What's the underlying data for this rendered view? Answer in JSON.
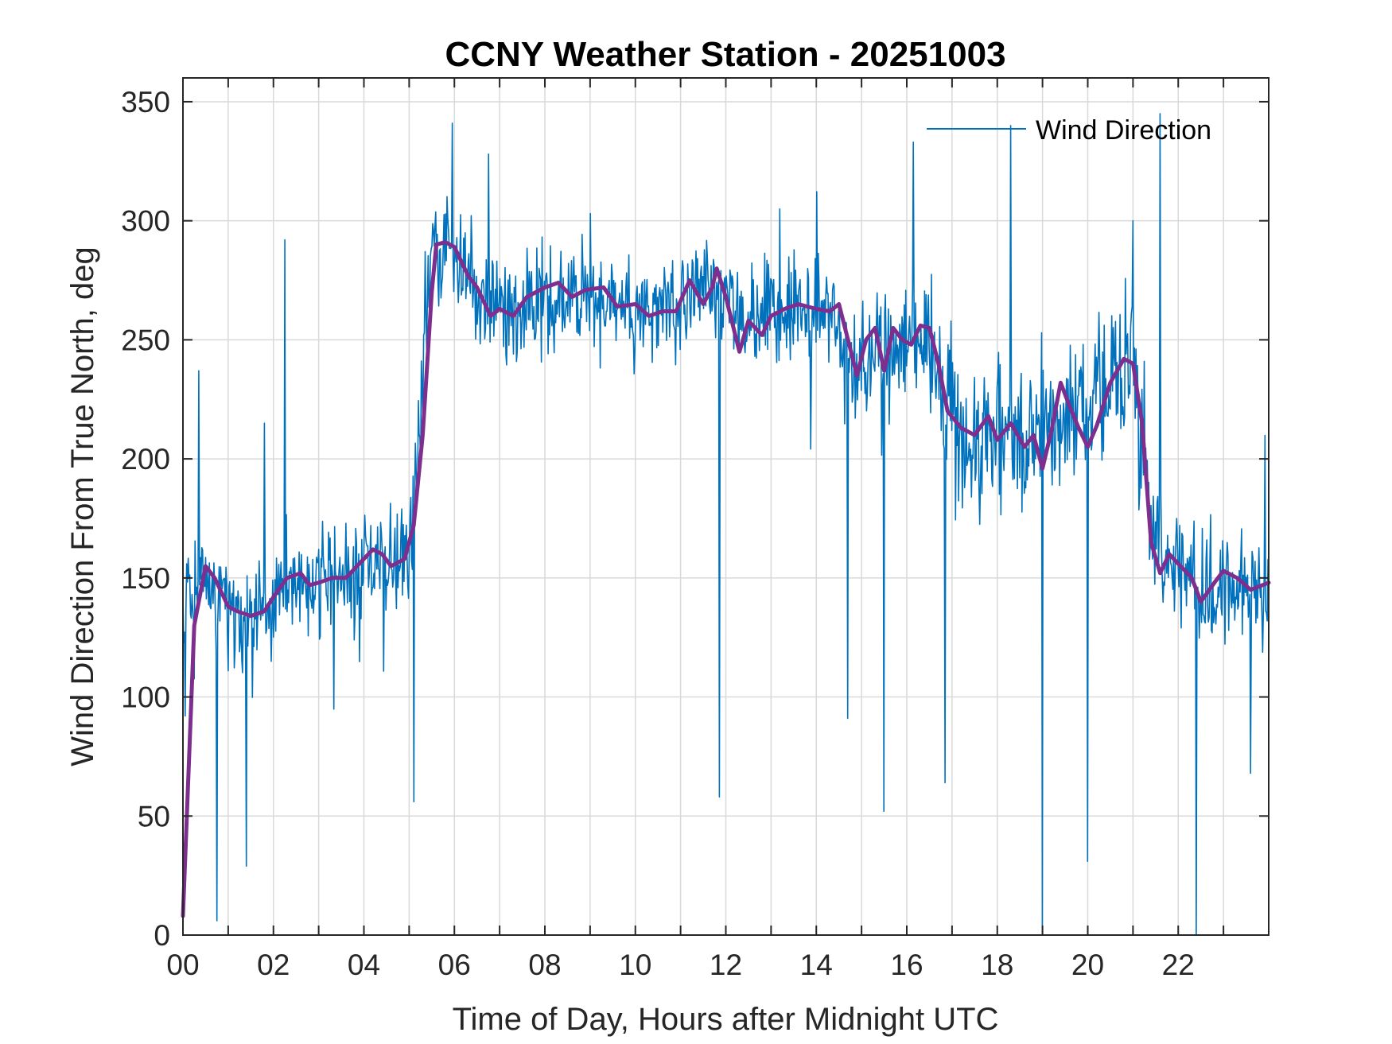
{
  "chart_data": {
    "type": "line",
    "title": "CCNY Weather Station - 20251003",
    "xlabel": "Time of Day, Hours after Midnight UTC",
    "ylabel": "Wind Direction From True North, deg",
    "xlim": [
      0,
      24
    ],
    "ylim": [
      0,
      360
    ],
    "grid": true,
    "legend_position": "top-right",
    "x_ticks": [
      0,
      2,
      4,
      6,
      8,
      10,
      12,
      14,
      16,
      18,
      20,
      22
    ],
    "x_tick_labels": [
      "00",
      "02",
      "04",
      "06",
      "08",
      "10",
      "12",
      "14",
      "16",
      "18",
      "20",
      "22"
    ],
    "x_minor_ticks": [
      1,
      3,
      5,
      7,
      9,
      11,
      13,
      15,
      17,
      19,
      21,
      23
    ],
    "y_ticks": [
      0,
      50,
      100,
      150,
      200,
      250,
      300,
      350
    ],
    "y_tick_labels": [
      "0",
      "50",
      "100",
      "150",
      "200",
      "250",
      "300",
      "350"
    ],
    "series": [
      {
        "name": "Wind Direction",
        "color": "#0072BD",
        "style": "thin-noisy",
        "base": {
          "x": [
            0,
            0.2,
            0.5,
            1.0,
            1.5,
            2.0,
            2.5,
            3.0,
            3.5,
            4.0,
            4.5,
            5.0,
            5.2,
            5.5,
            6.0,
            6.5,
            7.0,
            8.0,
            9.0,
            10.0,
            11.0,
            11.5,
            12.0,
            12.5,
            13.0,
            14.0,
            14.5,
            15.0,
            15.5,
            16.0,
            16.5,
            17.0,
            17.5,
            18.0,
            18.5,
            19.0,
            19.5,
            20.0,
            20.5,
            21.0,
            21.5,
            22.0,
            22.5,
            23.0,
            23.5,
            24.0
          ],
          "y": [
            150,
            145,
            150,
            138,
            135,
            140,
            148,
            148,
            152,
            158,
            155,
            162,
            210,
            290,
            285,
            272,
            262,
            268,
            270,
            262,
            262,
            272,
            270,
            255,
            260,
            262,
            255,
            240,
            245,
            248,
            250,
            215,
            210,
            208,
            205,
            218,
            212,
            215,
            235,
            238,
            160,
            155,
            145,
            148,
            145,
            145
          ]
        },
        "noise_amplitude": 22,
        "samples": 1440,
        "spikes": [
          {
            "x": 0.05,
            "y": 92
          },
          {
            "x": 0.35,
            "y": 237
          },
          {
            "x": 0.75,
            "y": 6
          },
          {
            "x": 1.4,
            "y": 29
          },
          {
            "x": 1.8,
            "y": 215
          },
          {
            "x": 2.25,
            "y": 292
          },
          {
            "x": 5.1,
            "y": 56
          },
          {
            "x": 5.95,
            "y": 341
          },
          {
            "x": 6.75,
            "y": 328
          },
          {
            "x": 11.85,
            "y": 58
          },
          {
            "x": 14.7,
            "y": 91
          },
          {
            "x": 15.5,
            "y": 52
          },
          {
            "x": 16.15,
            "y": 333
          },
          {
            "x": 16.85,
            "y": 64
          },
          {
            "x": 18.3,
            "y": 340
          },
          {
            "x": 19.0,
            "y": 0
          },
          {
            "x": 20.0,
            "y": 31
          },
          {
            "x": 21.0,
            "y": 300
          },
          {
            "x": 21.6,
            "y": 345
          },
          {
            "x": 22.4,
            "y": 0
          },
          {
            "x": 23.6,
            "y": 68
          }
        ]
      },
      {
        "name": "",
        "color": "#7E2F8E",
        "style": "thick-smooth",
        "x": [
          0,
          0.25,
          0.5,
          0.7,
          1.0,
          1.2,
          1.5,
          1.8,
          2.0,
          2.3,
          2.6,
          2.8,
          3.0,
          3.3,
          3.6,
          4.0,
          4.2,
          4.4,
          4.6,
          4.9,
          5.0,
          5.1,
          5.3,
          5.5,
          5.6,
          5.8,
          6.0,
          6.3,
          6.5,
          6.8,
          7.0,
          7.3,
          7.6,
          8.0,
          8.3,
          8.6,
          8.9,
          9.3,
          9.6,
          10.0,
          10.3,
          10.6,
          10.9,
          11.2,
          11.5,
          11.7,
          11.8,
          12.0,
          12.3,
          12.5,
          12.8,
          13.0,
          13.3,
          13.6,
          14.0,
          14.3,
          14.5,
          14.7,
          14.9,
          15.1,
          15.3,
          15.5,
          15.7,
          15.9,
          16.1,
          16.3,
          16.5,
          16.7,
          16.9,
          17.2,
          17.5,
          17.8,
          18.0,
          18.3,
          18.6,
          18.8,
          19.0,
          19.2,
          19.4,
          19.6,
          19.8,
          20.0,
          20.2,
          20.5,
          20.8,
          21.0,
          21.2,
          21.4,
          21.6,
          21.8,
          22.0,
          22.3,
          22.5,
          22.8,
          23.0,
          23.3,
          23.6,
          24.0
        ],
        "y": [
          8,
          130,
          155,
          150,
          138,
          136,
          134,
          136,
          142,
          150,
          152,
          147,
          148,
          150,
          150,
          158,
          162,
          160,
          155,
          158,
          165,
          172,
          210,
          270,
          290,
          291,
          289,
          277,
          272,
          260,
          263,
          260,
          268,
          272,
          274,
          268,
          271,
          272,
          264,
          265,
          260,
          262,
          262,
          275,
          265,
          272,
          280,
          268,
          245,
          258,
          252,
          260,
          263,
          265,
          263,
          262,
          265,
          250,
          235,
          250,
          255,
          237,
          255,
          250,
          248,
          256,
          255,
          240,
          220,
          213,
          210,
          218,
          208,
          215,
          205,
          210,
          196,
          212,
          232,
          222,
          213,
          205,
          214,
          232,
          242,
          240,
          215,
          165,
          152,
          160,
          156,
          150,
          140,
          148,
          153,
          150,
          145,
          148
        ]
      }
    ]
  }
}
